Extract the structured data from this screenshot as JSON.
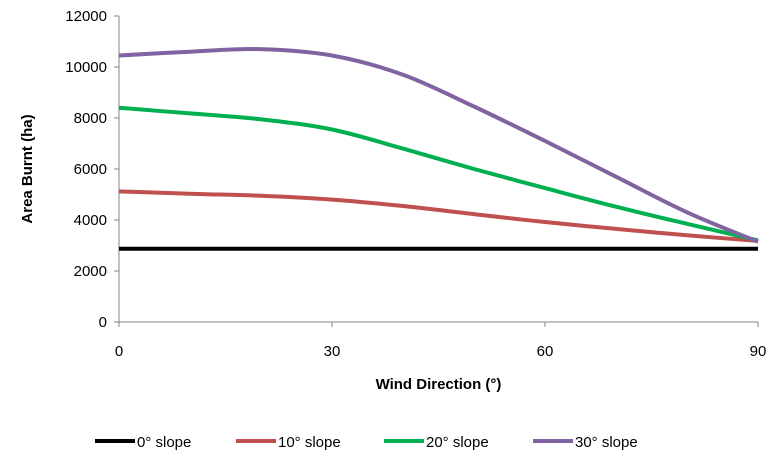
{
  "chart_data": {
    "type": "line",
    "title": "",
    "xlabel": "Wind Direction (°)",
    "ylabel": "Area Burnt (ha)",
    "xlim": [
      0,
      90
    ],
    "ylim": [
      0,
      12000
    ],
    "xticks": [
      0,
      30,
      60,
      90
    ],
    "yticks": [
      0,
      2000,
      4000,
      6000,
      8000,
      10000,
      12000
    ],
    "grid": false,
    "legend_position": "bottom",
    "series": [
      {
        "name": "0° slope",
        "color": "#000000",
        "x": [
          0,
          30,
          60,
          90
        ],
        "y": [
          2870,
          2870,
          2870,
          2870
        ]
      },
      {
        "name": "10° slope",
        "color": "#c0504d",
        "x": [
          0,
          10,
          20,
          30,
          40,
          50,
          60,
          70,
          80,
          90
        ],
        "y": [
          5120,
          5030,
          4950,
          4800,
          4550,
          4230,
          3920,
          3650,
          3400,
          3180
        ]
      },
      {
        "name": "20° slope",
        "color": "#00b050",
        "x": [
          0,
          10,
          20,
          30,
          40,
          50,
          60,
          70,
          80,
          90
        ],
        "y": [
          8400,
          8180,
          7950,
          7550,
          6800,
          6000,
          5250,
          4520,
          3850,
          3200
        ]
      },
      {
        "name": "30° slope",
        "color": "#8064a2",
        "x": [
          0,
          10,
          20,
          30,
          40,
          50,
          60,
          70,
          80,
          90
        ],
        "y": [
          10450,
          10600,
          10700,
          10450,
          9700,
          8450,
          7100,
          5700,
          4300,
          3150
        ]
      }
    ]
  }
}
